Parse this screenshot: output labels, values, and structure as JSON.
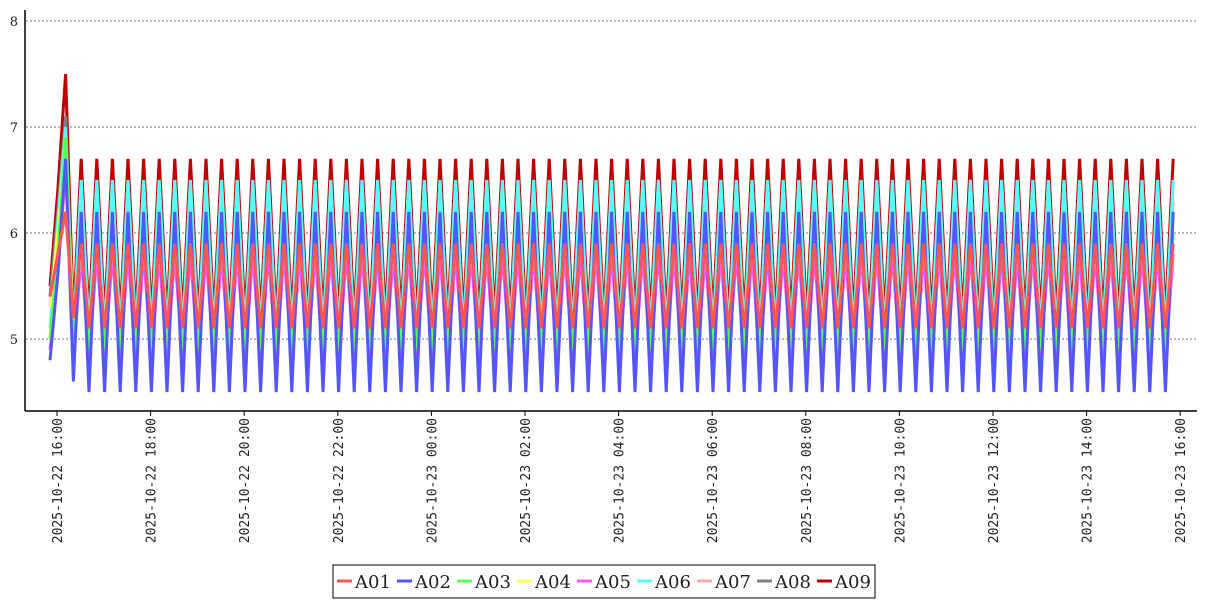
{
  "chart_data": {
    "type": "line",
    "title": "",
    "xlabel": "",
    "ylabel": "",
    "ylim": [
      4.33,
      8.1
    ],
    "y_ticks": [
      "5",
      "6",
      "7",
      "8"
    ],
    "y_tick_values": [
      5,
      6,
      7,
      8
    ],
    "x_ticks": [
      "2025-10-22 16:00",
      "2025-10-22 18:00",
      "2025-10-22 20:00",
      "2025-10-22 22:00",
      "2025-10-23 00:00",
      "2025-10-23 02:00",
      "2025-10-23 04:00",
      "2025-10-23 06:00",
      "2025-10-23 08:00",
      "2025-10-23 10:00",
      "2025-10-23 12:00",
      "2025-10-23 14:00",
      "2025-10-23 16:00"
    ],
    "x_tick_hours": [
      0,
      2,
      4,
      6,
      8,
      10,
      12,
      14,
      16,
      18,
      20,
      22,
      24
    ],
    "x_start_hours": -0.15,
    "interval_minutes": 10,
    "points": 145,
    "grid": "horizontal dotted",
    "legend_placement": "bottom-center",
    "series": [
      {
        "name": "A01",
        "color": "#ff5555",
        "initial": [
          5.4,
          5.8,
          6.2,
          5.2
        ],
        "cycle": [
          5.9,
          5.1
        ]
      },
      {
        "name": "A02",
        "color": "#5555ff",
        "initial": [
          4.8,
          5.6,
          6.7,
          4.6
        ],
        "cycle": [
          6.2,
          4.5
        ]
      },
      {
        "name": "A03",
        "color": "#55ff55",
        "initial": [
          5.0,
          5.8,
          6.9,
          4.9
        ],
        "cycle": [
          6.0,
          4.9
        ]
      },
      {
        "name": "A04",
        "color": "#ffff55",
        "initial": [
          5.3,
          6.0,
          6.8,
          5.1
        ],
        "cycle": [
          5.9,
          5.1
        ]
      },
      {
        "name": "A05",
        "color": "#ff55ff",
        "initial": [
          4.9,
          5.6,
          6.6,
          4.8
        ],
        "cycle": [
          5.8,
          4.8
        ]
      },
      {
        "name": "A06",
        "color": "#55ffff",
        "initial": [
          5.1,
          6.1,
          7.0,
          5.0
        ],
        "cycle": [
          6.5,
          5.0
        ]
      },
      {
        "name": "A07",
        "color": "#ffaaaa",
        "initial": [
          5.3,
          6.0,
          6.9,
          5.1
        ],
        "cycle": [
          6.3,
          5.1
        ]
      },
      {
        "name": "A08",
        "color": "#808080",
        "initial": [
          5.4,
          6.2,
          7.1,
          5.1
        ],
        "cycle": [
          6.5,
          5.1
        ]
      },
      {
        "name": "A09",
        "color": "#c00000",
        "initial": [
          5.5,
          6.4,
          7.5,
          5.2
        ],
        "cycle": [
          6.7,
          5.2
        ]
      }
    ]
  }
}
